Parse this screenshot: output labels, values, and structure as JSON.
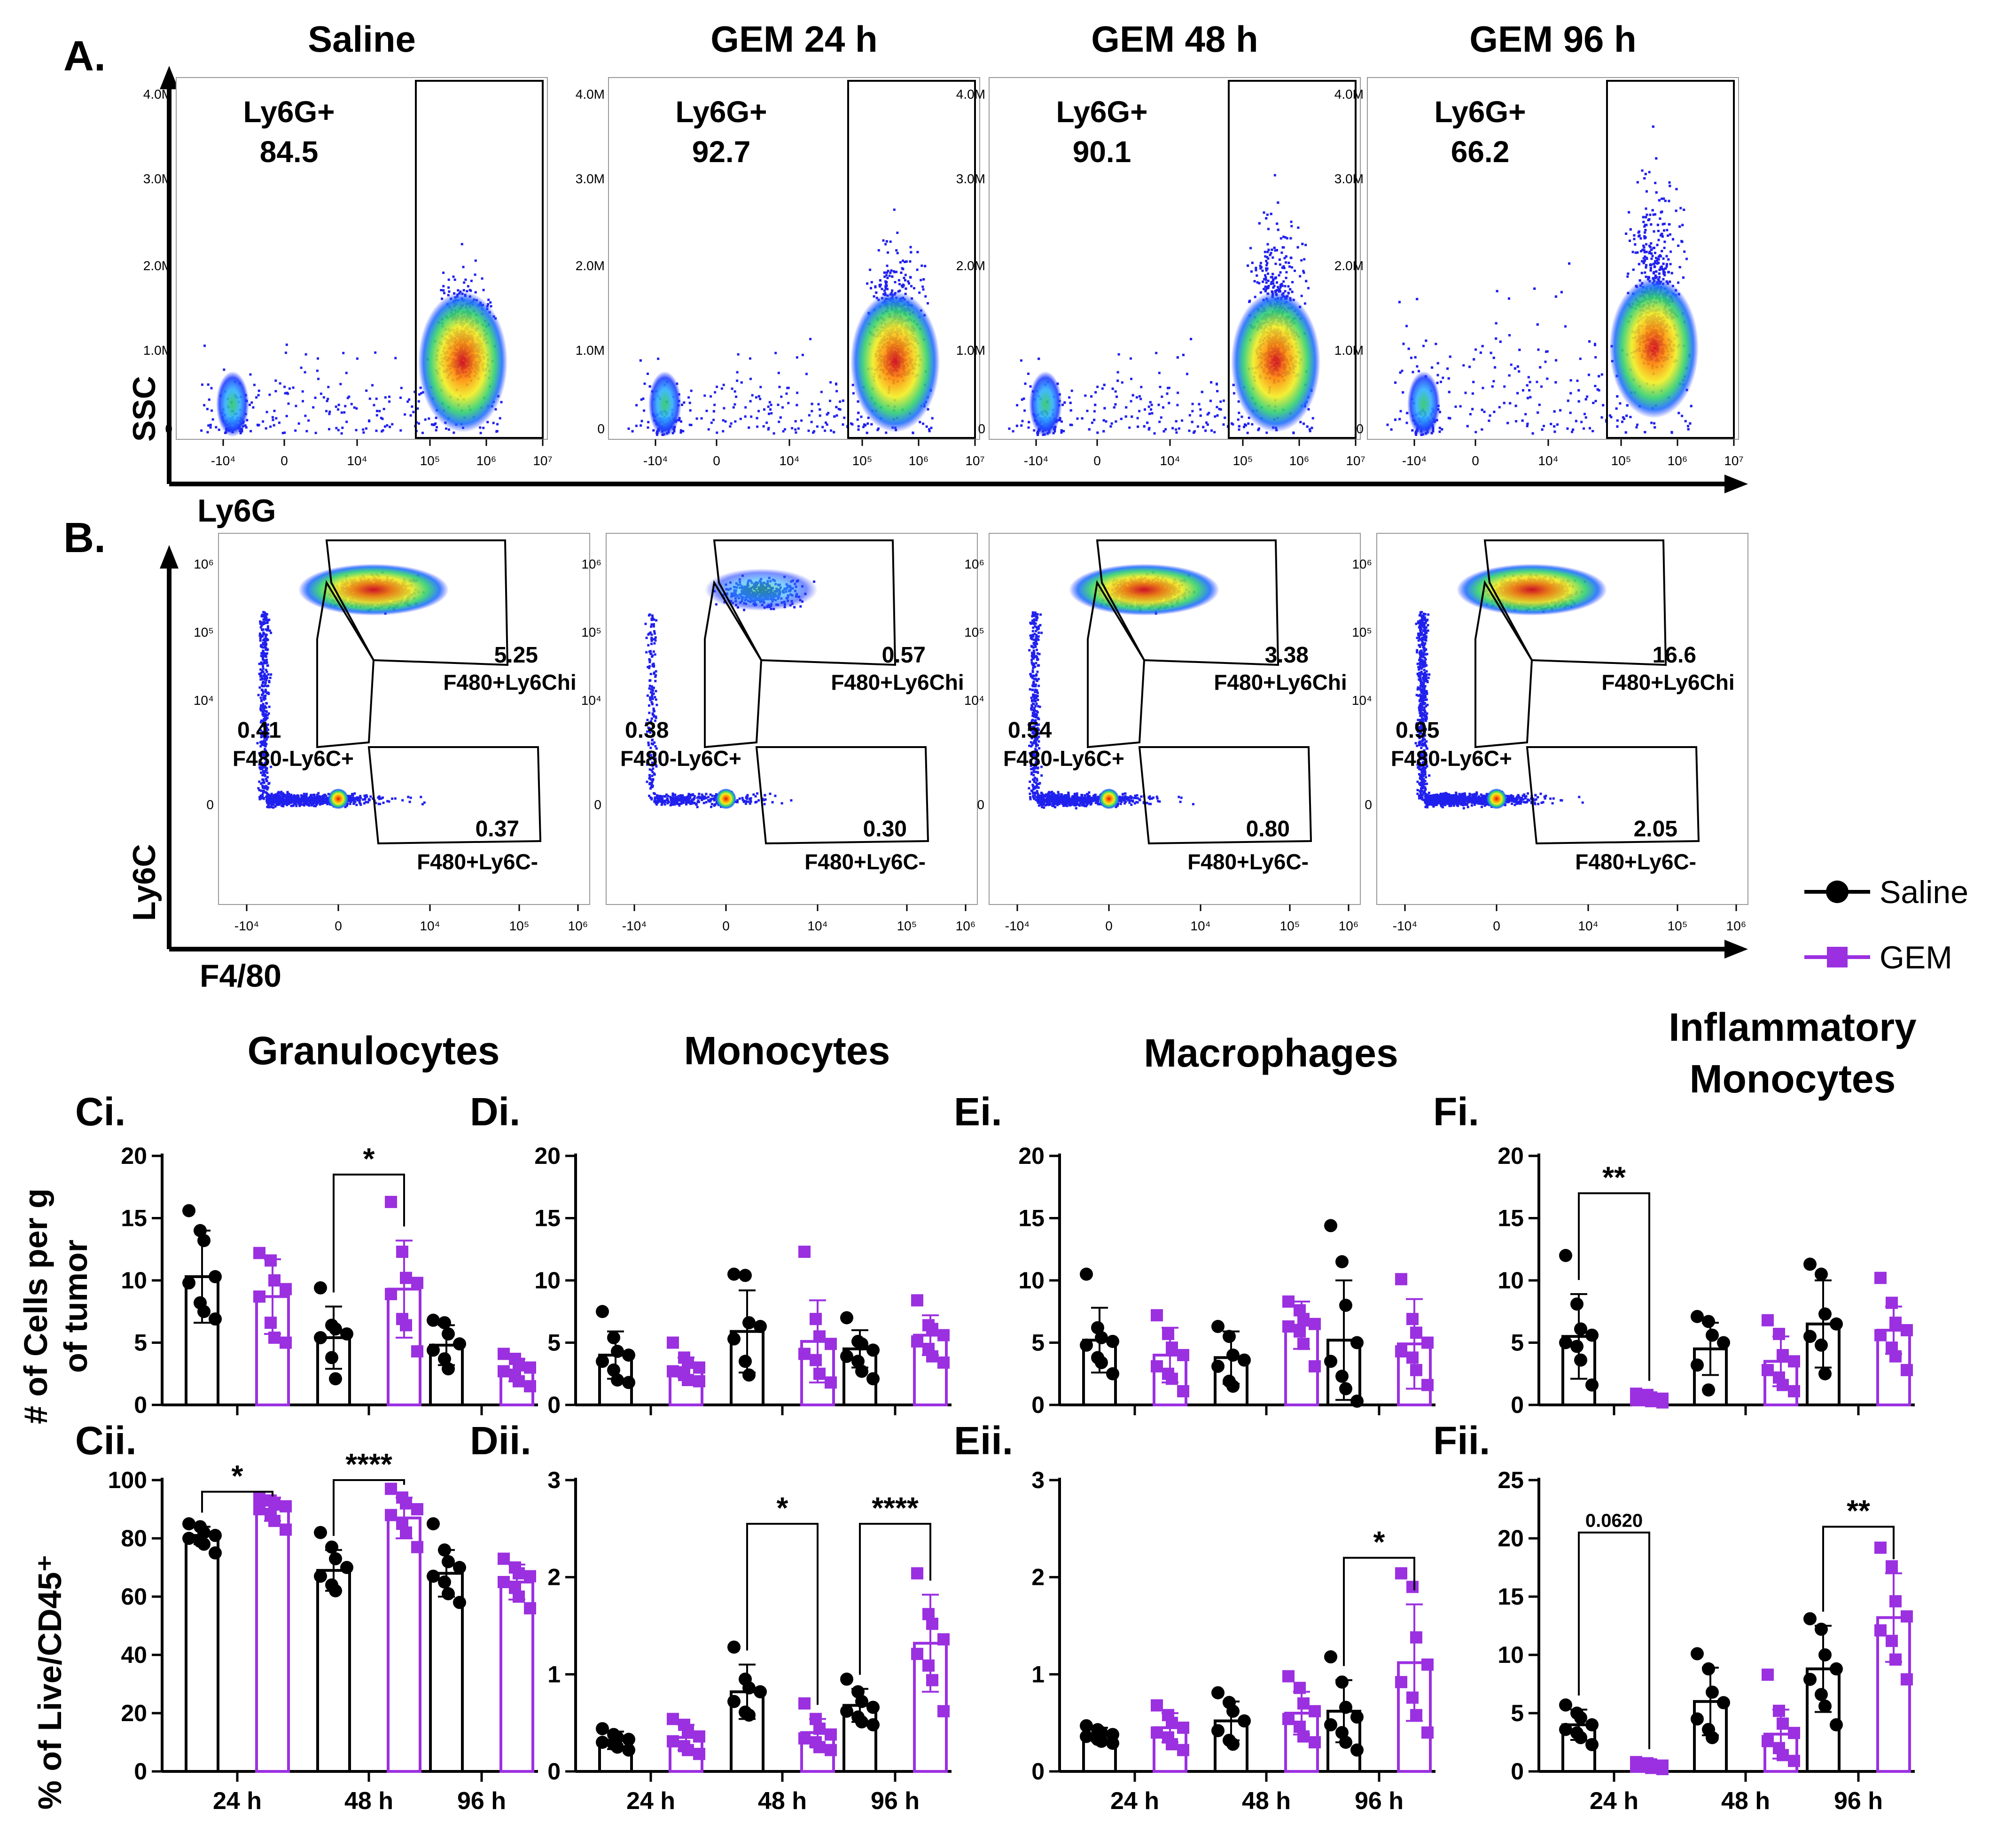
{
  "colors": {
    "saline": "#000000",
    "gem": "#9b30e0"
  },
  "legend": {
    "saline": "Saline",
    "gem": "GEM"
  },
  "panel_a": {
    "label": "A.",
    "y_axis_label": "SSC",
    "x_axis_label": "Ly6G",
    "y_ticks": [
      "4.0M",
      "3.0M",
      "2.0M",
      "1.0M",
      "0"
    ],
    "x_ticks": [
      "-10⁴",
      "0",
      "10⁴",
      "10⁵",
      "10⁶",
      "10⁷"
    ],
    "gate_label": "Ly6G+",
    "plots": [
      {
        "title": "Saline",
        "value": "84.5"
      },
      {
        "title": "GEM 24 h",
        "value": "92.7"
      },
      {
        "title": "GEM 48 h",
        "value": "90.1"
      },
      {
        "title": "GEM 96 h",
        "value": "66.2"
      }
    ]
  },
  "panel_b": {
    "label": "B.",
    "y_axis_label": "Ly6C",
    "x_axis_label": "F4/80",
    "y_ticks": [
      "10⁶",
      "10⁵",
      "10⁴",
      "0"
    ],
    "x_ticks": [
      "-10⁴",
      "0",
      "10⁴",
      "10⁵",
      "10⁶"
    ],
    "gate_labels": {
      "hi": "F480+Ly6Chi",
      "neg_pos": "F480-Ly6C+",
      "pos_neg": "F480+Ly6C-"
    },
    "plots": [
      {
        "hi": "5.25",
        "neg_pos": "0.41",
        "pos_neg": "0.37"
      },
      {
        "hi": "0.57",
        "neg_pos": "0.38",
        "pos_neg": "0.30"
      },
      {
        "hi": "3.38",
        "neg_pos": "0.54",
        "pos_neg": "0.80"
      },
      {
        "hi": "16.6",
        "neg_pos": "0.95",
        "pos_neg": "2.05"
      }
    ]
  },
  "bar_axes": {
    "row1_ylabel": [
      "# of Cells per g",
      "of tumor"
    ],
    "row2_ylabel": "% of Live/CD45⁺"
  },
  "chart_data": [
    {
      "type": "bar",
      "panel": "Ci.",
      "title": [
        "Granulocytes"
      ],
      "categories": [
        "24 h",
        "48 h",
        "96 h"
      ],
      "ylim": [
        0,
        20
      ],
      "yticks": [
        0,
        5,
        10,
        15,
        20
      ],
      "series": [
        {
          "name": "Saline",
          "values": [
            10.3,
            5.4,
            4.8
          ],
          "sd": [
            3.7,
            2.5,
            1.6
          ]
        },
        {
          "name": "GEM",
          "values": [
            8.7,
            9.3,
            2.8
          ],
          "sd": [
            3.0,
            3.9,
            0.9
          ]
        }
      ],
      "points": {
        "Saline": [
          [
            15.6,
            14.0,
            13.2,
            10.3,
            9.8,
            8.2,
            7.5,
            6.9
          ],
          [
            9.4,
            6.4,
            6.1,
            5.7,
            5.4,
            3.8,
            2.1
          ],
          [
            6.8,
            6.6,
            5.7,
            4.9,
            4.4,
            3.7,
            2.9
          ]
        ],
        "GEM": [
          [
            12.2,
            11.6,
            10.0,
            9.3,
            8.7,
            6.6,
            5.4,
            5.0
          ],
          [
            16.3,
            12.3,
            10.2,
            9.8,
            8.9,
            6.9,
            6.4,
            4.3
          ],
          [
            4.1,
            3.7,
            3.3,
            3.0,
            2.7,
            2.3,
            1.9,
            1.5
          ]
        ]
      },
      "annotations": [
        {
          "group": 1,
          "text": "*",
          "y": 18.5
        }
      ]
    },
    {
      "type": "bar",
      "panel": "Di.",
      "title": [
        "Monocytes"
      ],
      "categories": [
        "24 h",
        "48 h",
        "96 h"
      ],
      "ylim": [
        0,
        20
      ],
      "yticks": [
        0,
        5,
        10,
        15,
        20
      ],
      "series": [
        {
          "name": "Saline",
          "values": [
            4.0,
            5.9,
            4.5
          ],
          "sd": [
            1.9,
            3.3,
            1.5
          ]
        },
        {
          "name": "GEM",
          "values": [
            3.0,
            5.1,
            5.6
          ],
          "sd": [
            0.8,
            3.3,
            1.6
          ]
        }
      ],
      "points": {
        "Saline": [
          [
            7.5,
            5.4,
            4.3,
            4.0,
            3.5,
            2.8,
            2.0,
            1.8
          ],
          [
            10.5,
            10.4,
            6.6,
            6.3,
            5.3,
            3.5,
            2.4
          ],
          [
            7.0,
            5.1,
            4.9,
            4.4,
            3.9,
            3.5,
            2.7,
            2.1
          ]
        ],
        "GEM": [
          [
            5.0,
            3.8,
            3.4,
            3.0,
            2.7,
            2.4,
            2.0,
            1.9
          ],
          [
            12.3,
            6.9,
            5.5,
            4.9,
            4.1,
            3.6,
            2.5,
            1.8
          ],
          [
            8.4,
            6.4,
            6.1,
            5.6,
            5.1,
            4.5,
            3.9,
            3.4
          ]
        ]
      },
      "annotations": []
    },
    {
      "type": "bar",
      "panel": "Ei.",
      "title": [
        "Macrophages"
      ],
      "categories": [
        "24 h",
        "48 h",
        "96 h"
      ],
      "ylim": [
        0,
        20
      ],
      "yticks": [
        0,
        5,
        10,
        15,
        20
      ],
      "series": [
        {
          "name": "Saline",
          "values": [
            5.2,
            3.8,
            5.2
          ],
          "sd": [
            2.6,
            2.1,
            4.8
          ]
        },
        {
          "name": "GEM",
          "values": [
            4.0,
            6.4,
            4.9
          ],
          "sd": [
            2.2,
            1.9,
            3.6
          ]
        }
      ],
      "points": {
        "Saline": [
          [
            10.5,
            6.2,
            5.4,
            5.1,
            4.8,
            3.8,
            3.4,
            2.5
          ],
          [
            6.3,
            5.5,
            4.0,
            3.6,
            3.1,
            1.9,
            1.5
          ],
          [
            14.4,
            11.5,
            8.0,
            5.0,
            3.5,
            2.3,
            1.3,
            0.3
          ]
        ],
        "GEM": [
          [
            7.2,
            5.7,
            4.6,
            4.0,
            3.1,
            2.5,
            2.1,
            1.1
          ],
          [
            8.3,
            7.6,
            6.9,
            6.5,
            6.3,
            5.9,
            4.9,
            3.1
          ],
          [
            10.1,
            6.9,
            5.8,
            5.0,
            4.3,
            3.8,
            2.8,
            1.6
          ]
        ]
      },
      "annotations": []
    },
    {
      "type": "bar",
      "panel": "Fi.",
      "title": [
        "Inflammatory",
        "Monocytes"
      ],
      "categories": [
        "24 h",
        "48 h",
        "96 h"
      ],
      "ylim": [
        0,
        20
      ],
      "yticks": [
        0,
        5,
        10,
        15,
        20
      ],
      "series": [
        {
          "name": "Saline",
          "values": [
            5.5,
            4.5,
            6.5
          ],
          "sd": [
            3.4,
            2.1,
            3.5
          ]
        },
        {
          "name": "GEM",
          "values": [
            0.5,
            3.5,
            6.0
          ],
          "sd": [
            0.3,
            2.0,
            1.9
          ]
        }
      ],
      "points": {
        "Saline": [
          [
            12.0,
            8.1,
            6.1,
            5.6,
            5.0,
            4.7,
            3.6,
            1.6
          ],
          [
            7.1,
            6.7,
            5.6,
            5.0,
            3.2,
            1.2
          ],
          [
            11.3,
            10.5,
            7.3,
            6.5,
            5.5,
            4.8,
            2.5
          ]
        ],
        "GEM": [
          [
            0.9,
            0.8,
            0.6,
            0.5,
            0.4,
            0.4,
            0.3,
            0.2
          ],
          [
            6.8,
            5.7,
            4.0,
            3.5,
            2.8,
            2.2,
            1.6,
            1.1
          ],
          [
            10.2,
            8.2,
            6.6,
            6.0,
            5.6,
            4.6,
            3.9,
            2.8
          ]
        ]
      },
      "annotations": [
        {
          "group": 0,
          "text": "**",
          "y": 17
        }
      ]
    },
    {
      "type": "bar",
      "panel": "Cii.",
      "title": [],
      "categories": [
        "24 h",
        "48 h",
        "96 h"
      ],
      "ylim": [
        0,
        100
      ],
      "yticks": [
        0,
        20,
        40,
        60,
        80,
        100
      ],
      "series": [
        {
          "name": "Saline",
          "values": [
            81,
            69,
            68
          ],
          "sd": [
            3,
            7,
            8
          ]
        },
        {
          "name": "GEM",
          "values": [
            90,
            87,
            65
          ],
          "sd": [
            4,
            7,
            6
          ]
        }
      ],
      "points": {
        "Saline": [
          [
            85,
            84,
            82,
            81,
            80,
            79,
            78,
            75
          ],
          [
            82,
            77,
            73,
            70,
            67,
            64,
            62
          ],
          [
            85,
            76,
            72,
            70,
            67,
            65,
            61,
            58
          ]
        ],
        "GEM": [
          [
            94,
            93,
            92,
            91,
            90,
            88,
            86,
            83
          ],
          [
            97,
            94,
            92,
            90,
            88,
            85,
            82,
            77
          ],
          [
            73,
            70,
            68,
            67,
            65,
            63,
            60,
            56
          ]
        ]
      },
      "annotations": [
        {
          "group": 0,
          "text": "*",
          "y": 96
        },
        {
          "group": 1,
          "text": "****",
          "y": 100
        }
      ]
    },
    {
      "type": "bar",
      "panel": "Dii.",
      "title": [],
      "categories": [
        "24 h",
        "48 h",
        "96 h"
      ],
      "ylim": [
        0,
        3
      ],
      "yticks": [
        0,
        1,
        2,
        3
      ],
      "series": [
        {
          "name": "Saline",
          "values": [
            0.32,
            0.82,
            0.68
          ],
          "sd": [
            0.09,
            0.28,
            0.17
          ]
        },
        {
          "name": "GEM",
          "values": [
            0.35,
            0.4,
            1.32
          ],
          "sd": [
            0.13,
            0.14,
            0.5
          ]
        }
      ],
      "points": {
        "Saline": [
          [
            0.44,
            0.38,
            0.35,
            0.33,
            0.3,
            0.28,
            0.25,
            0.22
          ],
          [
            1.28,
            0.95,
            0.86,
            0.82,
            0.72,
            0.61,
            0.58
          ],
          [
            0.95,
            0.82,
            0.72,
            0.66,
            0.62,
            0.56,
            0.51,
            0.48
          ]
        ],
        "GEM": [
          [
            0.54,
            0.48,
            0.41,
            0.36,
            0.31,
            0.26,
            0.22,
            0.18
          ],
          [
            0.7,
            0.54,
            0.44,
            0.38,
            0.34,
            0.3,
            0.25,
            0.22
          ],
          [
            2.04,
            1.62,
            1.52,
            1.36,
            1.21,
            1.09,
            0.94,
            0.62
          ]
        ]
      },
      "annotations": [
        {
          "group": 1,
          "text": "*",
          "y": 2.55
        },
        {
          "group": 2,
          "text": "****",
          "y": 2.55
        }
      ]
    },
    {
      "type": "bar",
      "panel": "Eii.",
      "title": [],
      "categories": [
        "24 h",
        "48 h",
        "96 h"
      ],
      "ylim": [
        0,
        3
      ],
      "yticks": [
        0,
        1,
        2,
        3
      ],
      "series": [
        {
          "name": "Saline",
          "values": [
            0.38,
            0.52,
            0.62
          ],
          "sd": [
            0.07,
            0.2,
            0.32
          ]
        },
        {
          "name": "GEM",
          "values": [
            0.45,
            0.6,
            1.12
          ],
          "sd": [
            0.15,
            0.22,
            0.6
          ]
        }
      ],
      "points": {
        "Saline": [
          [
            0.47,
            0.43,
            0.4,
            0.38,
            0.36,
            0.33,
            0.31,
            0.29
          ],
          [
            0.81,
            0.71,
            0.62,
            0.52,
            0.42,
            0.32,
            0.28
          ],
          [
            1.18,
            0.92,
            0.66,
            0.56,
            0.48,
            0.4,
            0.3,
            0.22
          ]
        ],
        "GEM": [
          [
            0.68,
            0.58,
            0.5,
            0.45,
            0.4,
            0.35,
            0.28,
            0.22
          ],
          [
            0.98,
            0.86,
            0.7,
            0.62,
            0.54,
            0.46,
            0.36,
            0.3
          ],
          [
            2.04,
            1.9,
            1.38,
            1.1,
            0.92,
            0.76,
            0.58,
            0.4
          ]
        ]
      },
      "annotations": [
        {
          "group": 2,
          "text": "*",
          "y": 2.2
        }
      ]
    },
    {
      "type": "bar",
      "panel": "Fii.",
      "title": [],
      "categories": [
        "24 h",
        "48 h",
        "96 h"
      ],
      "ylim": [
        0,
        25
      ],
      "yticks": [
        0,
        5,
        10,
        15,
        20,
        25
      ],
      "series": [
        {
          "name": "Saline",
          "values": [
            4.0,
            6.0,
            8.8
          ],
          "sd": [
            1.3,
            2.9,
            3.7
          ]
        },
        {
          "name": "GEM",
          "values": [
            0.5,
            3.2,
            13.2
          ],
          "sd": [
            0.2,
            2.1,
            3.8
          ]
        }
      ],
      "points": {
        "Saline": [
          [
            5.7,
            5.0,
            4.6,
            4.0,
            3.6,
            3.3,
            2.9,
            2.3
          ],
          [
            10.1,
            8.8,
            6.8,
            5.9,
            4.5,
            3.6,
            2.9
          ],
          [
            13.1,
            12.2,
            10.0,
            8.8,
            7.9,
            6.6,
            5.6,
            4.0
          ]
        ],
        "GEM": [
          [
            0.8,
            0.7,
            0.6,
            0.5,
            0.4,
            0.4,
            0.3,
            0.2
          ],
          [
            8.3,
            5.2,
            4.1,
            3.3,
            2.6,
            2.0,
            1.4,
            0.9
          ],
          [
            19.2,
            17.6,
            14.6,
            13.3,
            12.1,
            11.2,
            9.6,
            7.9
          ]
        ]
      },
      "annotations": [
        {
          "group": 0,
          "text": "0.0620",
          "y": 20.5,
          "small": true
        },
        {
          "group": 2,
          "text": "**",
          "y": 21
        }
      ]
    }
  ]
}
